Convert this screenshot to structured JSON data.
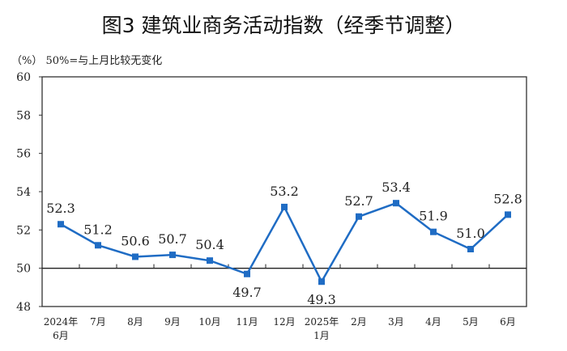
{
  "chart_data": {
    "type": "line",
    "title": "图3  建筑业商务活动指数（经季节调整）",
    "note": "（%） 50%=与上月比较无变化",
    "ylabel": "%",
    "ylim": [
      48,
      60
    ],
    "yticks": [
      "48",
      "50",
      "52",
      "54",
      "56",
      "58",
      "60"
    ],
    "reference_line": 50,
    "categories": [
      [
        "2024年",
        "6月"
      ],
      [
        "7月"
      ],
      [
        "8月"
      ],
      [
        "9月"
      ],
      [
        "10月"
      ],
      [
        "11月"
      ],
      [
        "12月"
      ],
      [
        "2025年",
        "1月"
      ],
      [
        "2月"
      ],
      [
        "3月"
      ],
      [
        "4月"
      ],
      [
        "5月"
      ],
      [
        "6月"
      ]
    ],
    "values": [
      52.3,
      51.2,
      50.6,
      50.7,
      50.4,
      49.7,
      53.2,
      49.3,
      52.7,
      53.4,
      51.9,
      51.0,
      52.8
    ],
    "labels": [
      "52.3",
      "51.2",
      "50.6",
      "50.7",
      "50.4",
      "49.7",
      "53.2",
      "49.3",
      "52.7",
      "53.4",
      "51.9",
      "51.0",
      "52.8"
    ],
    "line_color": "#1f6cc4"
  }
}
